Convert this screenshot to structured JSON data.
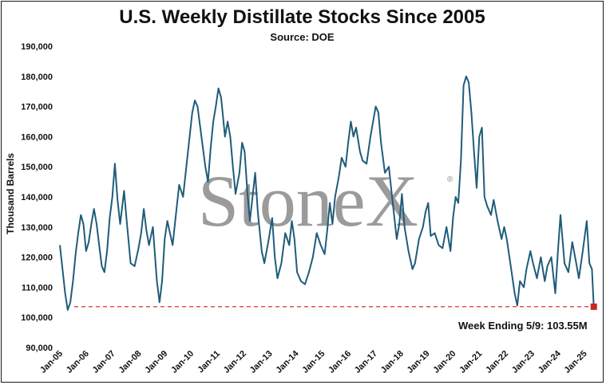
{
  "chart_data": {
    "type": "line",
    "title": "U.S. Weekly Distillate Stocks Since 2005",
    "subtitle": "Source: DOE",
    "xlabel": "",
    "ylabel": "Thousand Barrels",
    "ylim": [
      90000,
      190000
    ],
    "yticks": [
      90000,
      100000,
      110000,
      120000,
      130000,
      140000,
      150000,
      160000,
      170000,
      180000,
      190000
    ],
    "ytick_labels": [
      "90,000",
      "100,000",
      "110,000",
      "120,000",
      "130,000",
      "140,000",
      "150,000",
      "160,000",
      "170,000",
      "180,000",
      "190,000"
    ],
    "xlim": [
      2005.0,
      2025.5
    ],
    "xticks": [
      2005,
      2006,
      2007,
      2008,
      2009,
      2010,
      2011,
      2012,
      2013,
      2014,
      2015,
      2016,
      2017,
      2018,
      2019,
      2020,
      2021,
      2022,
      2023,
      2024,
      2025
    ],
    "xtick_labels": [
      "Jan-05",
      "Jan-06",
      "Jan-07",
      "Jan-08",
      "Jan-09",
      "Jan-10",
      "Jan-11",
      "Jan-12",
      "Jan-13",
      "Jan-14",
      "Jan-15",
      "Jan-16",
      "Jan-17",
      "Jan-18",
      "Jan-19",
      "Jan-20",
      "Jan-21",
      "Jan-22",
      "Jan-23",
      "Jan-24",
      "Jan-25"
    ],
    "grid": false,
    "legend": false,
    "series": [
      {
        "color": "#1f5c7a",
        "points": [
          [
            2005.0,
            124000
          ],
          [
            2005.1,
            116000
          ],
          [
            2005.2,
            108000
          ],
          [
            2005.3,
            102500
          ],
          [
            2005.4,
            105000
          ],
          [
            2005.5,
            112000
          ],
          [
            2005.6,
            121000
          ],
          [
            2005.7,
            128000
          ],
          [
            2005.8,
            134000
          ],
          [
            2005.9,
            131000
          ],
          [
            2006.0,
            122000
          ],
          [
            2006.1,
            125000
          ],
          [
            2006.2,
            131000
          ],
          [
            2006.3,
            136000
          ],
          [
            2006.4,
            131000
          ],
          [
            2006.5,
            124000
          ],
          [
            2006.6,
            117000
          ],
          [
            2006.7,
            115000
          ],
          [
            2006.8,
            122000
          ],
          [
            2006.9,
            133000
          ],
          [
            2007.0,
            140000
          ],
          [
            2007.1,
            151000
          ],
          [
            2007.2,
            139000
          ],
          [
            2007.3,
            131000
          ],
          [
            2007.45,
            142000
          ],
          [
            2007.55,
            132000
          ],
          [
            2007.7,
            118000
          ],
          [
            2007.85,
            117000
          ],
          [
            2008.0,
            123000
          ],
          [
            2008.1,
            128000
          ],
          [
            2008.2,
            136000
          ],
          [
            2008.3,
            129000
          ],
          [
            2008.4,
            124000
          ],
          [
            2008.55,
            130000
          ],
          [
            2008.7,
            112000
          ],
          [
            2008.8,
            105000
          ],
          [
            2008.9,
            112000
          ],
          [
            2009.0,
            126000
          ],
          [
            2009.1,
            132000
          ],
          [
            2009.2,
            128000
          ],
          [
            2009.3,
            124000
          ],
          [
            2009.45,
            136000
          ],
          [
            2009.55,
            144000
          ],
          [
            2009.7,
            140000
          ],
          [
            2009.85,
            152000
          ],
          [
            2009.95,
            160000
          ],
          [
            2010.05,
            168000
          ],
          [
            2010.15,
            172000
          ],
          [
            2010.25,
            170000
          ],
          [
            2010.4,
            160000
          ],
          [
            2010.55,
            150000
          ],
          [
            2010.65,
            145000
          ],
          [
            2010.75,
            156000
          ],
          [
            2010.85,
            165000
          ],
          [
            2010.95,
            170000
          ],
          [
            2011.05,
            176000
          ],
          [
            2011.15,
            173000
          ],
          [
            2011.3,
            160000
          ],
          [
            2011.4,
            165000
          ],
          [
            2011.5,
            160000
          ],
          [
            2011.6,
            150000
          ],
          [
            2011.7,
            141000
          ],
          [
            2011.85,
            148000
          ],
          [
            2011.95,
            158000
          ],
          [
            2012.05,
            155000
          ],
          [
            2012.15,
            142000
          ],
          [
            2012.25,
            132000
          ],
          [
            2012.35,
            140000
          ],
          [
            2012.45,
            148000
          ],
          [
            2012.55,
            135000
          ],
          [
            2012.7,
            122000
          ],
          [
            2012.8,
            118000
          ],
          [
            2012.95,
            125000
          ],
          [
            2013.1,
            133000
          ],
          [
            2013.2,
            120000
          ],
          [
            2013.3,
            113000
          ],
          [
            2013.45,
            118000
          ],
          [
            2013.6,
            128000
          ],
          [
            2013.75,
            124000
          ],
          [
            2013.85,
            132000
          ],
          [
            2013.95,
            126000
          ],
          [
            2014.05,
            115000
          ],
          [
            2014.2,
            112000
          ],
          [
            2014.35,
            111000
          ],
          [
            2014.5,
            115000
          ],
          [
            2014.65,
            120000
          ],
          [
            2014.8,
            128000
          ],
          [
            2014.95,
            124000
          ],
          [
            2015.1,
            121000
          ],
          [
            2015.2,
            129000
          ],
          [
            2015.3,
            138000
          ],
          [
            2015.4,
            131000
          ],
          [
            2015.5,
            140000
          ],
          [
            2015.65,
            147000
          ],
          [
            2015.75,
            153000
          ],
          [
            2015.9,
            150000
          ],
          [
            2016.0,
            158000
          ],
          [
            2016.1,
            165000
          ],
          [
            2016.2,
            160000
          ],
          [
            2016.3,
            163000
          ],
          [
            2016.45,
            155000
          ],
          [
            2016.55,
            152000
          ],
          [
            2016.7,
            151000
          ],
          [
            2016.85,
            160000
          ],
          [
            2016.95,
            165000
          ],
          [
            2017.05,
            170000
          ],
          [
            2017.15,
            168000
          ],
          [
            2017.25,
            158000
          ],
          [
            2017.4,
            148000
          ],
          [
            2017.55,
            150000
          ],
          [
            2017.7,
            138000
          ],
          [
            2017.85,
            126000
          ],
          [
            2017.95,
            131000
          ],
          [
            2018.05,
            141000
          ],
          [
            2018.15,
            130000
          ],
          [
            2018.3,
            122000
          ],
          [
            2018.45,
            116000
          ],
          [
            2018.55,
            118000
          ],
          [
            2018.7,
            126000
          ],
          [
            2018.85,
            130000
          ],
          [
            2018.95,
            135000
          ],
          [
            2019.05,
            138000
          ],
          [
            2019.15,
            127000
          ],
          [
            2019.3,
            128000
          ],
          [
            2019.45,
            124000
          ],
          [
            2019.6,
            123000
          ],
          [
            2019.75,
            130000
          ],
          [
            2019.9,
            122000
          ],
          [
            2020.0,
            133000
          ],
          [
            2020.1,
            140000
          ],
          [
            2020.2,
            138000
          ],
          [
            2020.3,
            152000
          ],
          [
            2020.4,
            177000
          ],
          [
            2020.5,
            180000
          ],
          [
            2020.6,
            178000
          ],
          [
            2020.7,
            168000
          ],
          [
            2020.8,
            155000
          ],
          [
            2020.9,
            143000
          ],
          [
            2021.0,
            160000
          ],
          [
            2021.1,
            163000
          ],
          [
            2021.2,
            140000
          ],
          [
            2021.3,
            137000
          ],
          [
            2021.45,
            134000
          ],
          [
            2021.55,
            139000
          ],
          [
            2021.7,
            132000
          ],
          [
            2021.85,
            126000
          ],
          [
            2021.95,
            130000
          ],
          [
            2022.05,
            126000
          ],
          [
            2022.2,
            117000
          ],
          [
            2022.35,
            108000
          ],
          [
            2022.45,
            104000
          ],
          [
            2022.55,
            112000
          ],
          [
            2022.7,
            110000
          ],
          [
            2022.8,
            116000
          ],
          [
            2022.95,
            122000
          ],
          [
            2023.05,
            118000
          ],
          [
            2023.2,
            113000
          ],
          [
            2023.35,
            120000
          ],
          [
            2023.5,
            112000
          ],
          [
            2023.6,
            117000
          ],
          [
            2023.75,
            120000
          ],
          [
            2023.9,
            108000
          ],
          [
            2024.0,
            122000
          ],
          [
            2024.1,
            134000
          ],
          [
            2024.25,
            118000
          ],
          [
            2024.4,
            115000
          ],
          [
            2024.55,
            125000
          ],
          [
            2024.7,
            118000
          ],
          [
            2024.8,
            113000
          ],
          [
            2024.95,
            122000
          ],
          [
            2025.1,
            132000
          ],
          [
            2025.2,
            118000
          ],
          [
            2025.3,
            116000
          ],
          [
            2025.37,
            103550
          ]
        ]
      }
    ],
    "reference_line": {
      "value": 103550,
      "color": "#e03030",
      "style": "dashed"
    },
    "end_marker": {
      "x": 2025.37,
      "y": 103550,
      "color": "#cc2222"
    },
    "annotation": "Week Ending 5/9:  103.55M",
    "watermark": "StoneX"
  }
}
